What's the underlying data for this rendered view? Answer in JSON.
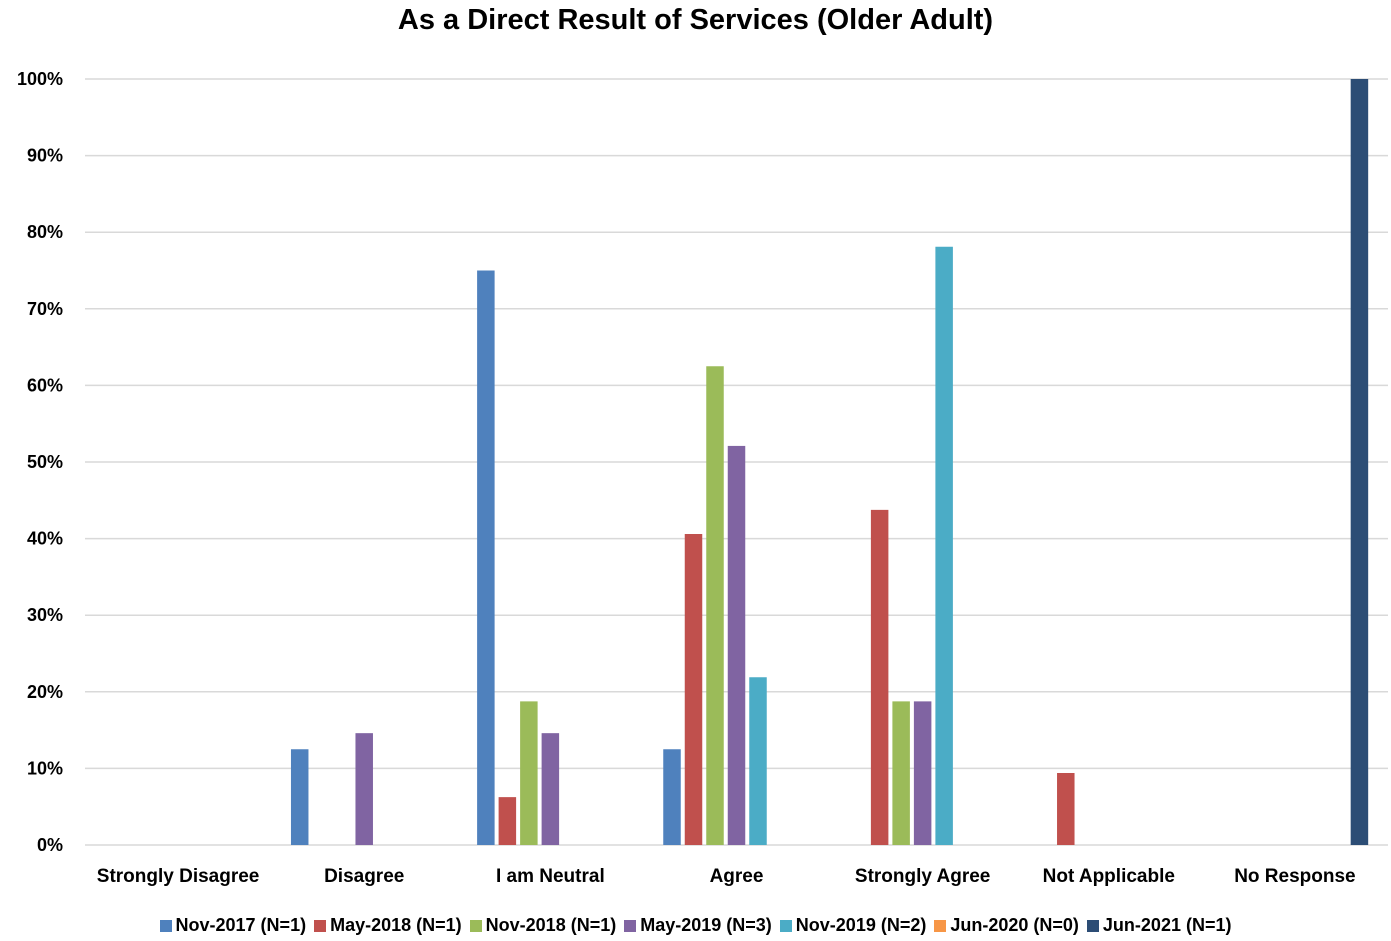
{
  "chart_data": {
    "type": "bar",
    "title": "As a Direct Result of Services (Older Adult)",
    "categories": [
      "Strongly Disagree",
      "Disagree",
      "I am Neutral",
      "Agree",
      "Strongly Agree",
      "Not Applicable",
      "No Response"
    ],
    "yticks": [
      "0%",
      "10%",
      "20%",
      "30%",
      "40%",
      "50%",
      "60%",
      "70%",
      "80%",
      "90%",
      "100%"
    ],
    "ylim": [
      0,
      100
    ],
    "grid": true,
    "legend_position": "bottom",
    "series": [
      {
        "name": "Nov-2017 (N=1)",
        "color": "#4F81BD",
        "values": [
          0,
          12.5,
          75,
          12.5,
          0,
          0,
          0
        ]
      },
      {
        "name": "May-2018 (N=1)",
        "color": "#C0504D",
        "values": [
          0,
          0,
          6.25,
          40.6,
          43.75,
          9.4,
          0
        ]
      },
      {
        "name": "Nov-2018 (N=1)",
        "color": "#9BBB59",
        "values": [
          0,
          0,
          18.75,
          62.5,
          18.75,
          0,
          0
        ]
      },
      {
        "name": "May-2019 (N=3)",
        "color": "#8064A2",
        "values": [
          0,
          14.6,
          14.6,
          52.1,
          18.75,
          0,
          0
        ]
      },
      {
        "name": "Nov-2019 (N=2)",
        "color": "#4BACC6",
        "values": [
          0,
          0,
          0,
          21.9,
          78.1,
          0,
          0
        ]
      },
      {
        "name": "Jun-2020 (N=0)",
        "color": "#F79646",
        "values": [
          0,
          0,
          0,
          0,
          0,
          0,
          0
        ]
      },
      {
        "name": "Jun-2021 (N=1)",
        "color": "#2C4D75",
        "values": [
          0,
          0,
          0,
          0,
          0,
          0,
          100
        ]
      }
    ]
  }
}
